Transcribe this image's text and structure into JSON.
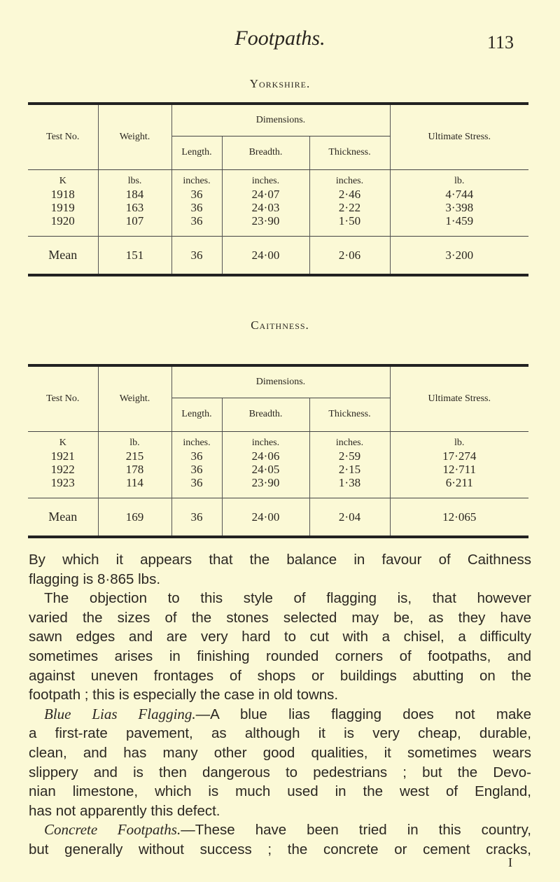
{
  "header": {
    "running_title": "Footpaths.",
    "page_number": "113"
  },
  "tables": [
    {
      "title": "Yorkshire.",
      "headers": {
        "test_no": "Test No.",
        "weight": "Weight.",
        "dimensions": "Dimensions.",
        "length": "Length.",
        "breadth": "Breadth.",
        "thickness": "Thickness.",
        "stress": "Ultimate Stress."
      },
      "units": [
        "K",
        "lbs.",
        "inches.",
        "inches.",
        "inches.",
        "lb."
      ],
      "rows": [
        [
          "1918",
          "184",
          "36",
          "24·07",
          "2·46",
          "4·744"
        ],
        [
          "1919",
          "163",
          "36",
          "24·03",
          "2·22",
          "3·398"
        ],
        [
          "1920",
          "107",
          "36",
          "23·90",
          "1·50",
          "1·459"
        ]
      ],
      "mean": [
        "Mean",
        "151",
        "36",
        "24·00",
        "2·06",
        "3·200"
      ]
    },
    {
      "title": "Caithness.",
      "headers": {
        "test_no": "Test No.",
        "weight": "Weight.",
        "dimensions": "Dimensions.",
        "length": "Length.",
        "breadth": "Breadth.",
        "thickness": "Thickness.",
        "stress": "Ultimate Stress."
      },
      "units": [
        "K",
        "lb.",
        "inches.",
        "inches.",
        "inches.",
        "lb."
      ],
      "rows": [
        [
          "1921",
          "215",
          "36",
          "24·06",
          "2·59",
          "17·274"
        ],
        [
          "1922",
          "178",
          "36",
          "24·05",
          "2·15",
          "12·711"
        ],
        [
          "1923",
          "114",
          "36",
          "23·90",
          "1·38",
          "6·211"
        ]
      ],
      "mean": [
        "Mean",
        "169",
        "36",
        "24·00",
        "2·04",
        "12·065"
      ]
    }
  ],
  "body": {
    "l1": "By which it appears that the balance in favour of Caithness",
    "l2": "flagging is 8·865 lbs.",
    "l3": "The objection to this style of flagging is, that however",
    "l4": "varied the sizes of the stones selected may be, as they have",
    "l5": "sawn edges and are very hard to cut with a chisel, a difficulty",
    "l6": "sometimes arises in finishing rounded corners of footpaths, and",
    "l7": "against uneven frontages of shops or buildings abutting on the",
    "l8": "footpath ; this is especially the case in old towns.",
    "l9_it": "Blue Lias Flagging.",
    "l9": "—A blue lias flagging does not make",
    "l10": "a first-rate pavement, as although it is very cheap, durable,",
    "l11": "clean, and has many other good qualities, it sometimes wears",
    "l12": "slippery and is then dangerous to pedestrians ; but the Devo-",
    "l13": "nian limestone, which is much used in the west of England,",
    "l14": "has not apparently this defect.",
    "l15_it": "Concrete Footpaths.",
    "l15": "—These have been tried in this country,",
    "l16": "but generally without success ; the concrete or cement cracks,"
  },
  "signature": "I"
}
